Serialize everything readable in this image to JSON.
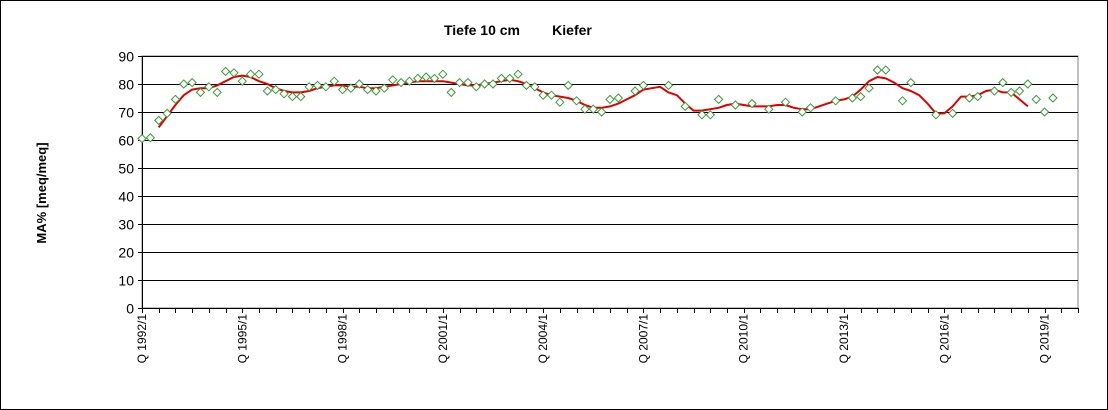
{
  "chart_data": {
    "type": "line",
    "title_left": "Tiefe  10 cm",
    "title_right": "Kiefer",
    "xlabel": "",
    "ylabel": "MA% [meq/meq]",
    "ylim": [
      0,
      90
    ],
    "yticks": [
      0,
      10,
      20,
      30,
      40,
      50,
      60,
      70,
      80,
      90
    ],
    "grid": true,
    "legend": "none",
    "x_unit": "quarter",
    "x_range": [
      "1992/1",
      "2019/4"
    ],
    "xtick_labels": [
      {
        "quarter": "1992/1",
        "label": "Q 1992/1"
      },
      {
        "quarter": "1995/1",
        "label": "Q 1995/1"
      },
      {
        "quarter": "1998/1",
        "label": "Q 1998/1"
      },
      {
        "quarter": "2001/1",
        "label": "Q 2001/1"
      },
      {
        "quarter": "2004/1",
        "label": "Q 2004/1"
      },
      {
        "quarter": "2007/1",
        "label": "Q 2007/1"
      },
      {
        "quarter": "2010/1",
        "label": "Q 2010/1"
      },
      {
        "quarter": "2013/1",
        "label": "Q 2013/1"
      },
      {
        "quarter": "2016/1",
        "label": "Q 2016/1"
      },
      {
        "quarter": "2019/1",
        "label": "Q 2019/1"
      }
    ],
    "colors": {
      "points": "#3a9a3a",
      "smooth": "#e00000",
      "grid": "#000000"
    },
    "series": [
      {
        "kind": "scatter-diamond",
        "points": [
          [
            "1992/1",
            60.5
          ],
          [
            "1992/2",
            60.8
          ],
          [
            "1992/3",
            67
          ],
          [
            "1992/4",
            69.5
          ],
          [
            "1993/1",
            74.5
          ],
          [
            "1993/2",
            80
          ],
          [
            "1993/3",
            80.5
          ],
          [
            "1993/4",
            77
          ],
          [
            "1994/1",
            79
          ],
          [
            "1994/2",
            77
          ],
          [
            "1994/3",
            84.5
          ],
          [
            "1994/4",
            84
          ],
          [
            "1995/1",
            81
          ],
          [
            "1995/2",
            83.5
          ],
          [
            "1995/3",
            83.5
          ],
          [
            "1995/4",
            77.5
          ],
          [
            "1996/1",
            78
          ],
          [
            "1996/2",
            76.5
          ],
          [
            "1996/3",
            75.5
          ],
          [
            "1996/4",
            75.5
          ],
          [
            "1997/1",
            79
          ],
          [
            "1997/2",
            79.5
          ],
          [
            "1997/3",
            79
          ],
          [
            "1997/4",
            81
          ],
          [
            "1998/1",
            78
          ],
          [
            "1998/2",
            78.5
          ],
          [
            "1998/3",
            80
          ],
          [
            "1998/4",
            78
          ],
          [
            "1999/1",
            77.5
          ],
          [
            "1999/2",
            78.5
          ],
          [
            "1999/3",
            81.5
          ],
          [
            "1999/4",
            80.5
          ],
          [
            "2000/1",
            81
          ],
          [
            "2000/2",
            82
          ],
          [
            "2000/3",
            82.5
          ],
          [
            "2000/4",
            82
          ],
          [
            "2001/1",
            83.5
          ],
          [
            "2001/2",
            77
          ],
          [
            "2001/3",
            80.5
          ],
          [
            "2001/4",
            80.5
          ],
          [
            "2002/1",
            79
          ],
          [
            "2002/2",
            80
          ],
          [
            "2002/3",
            80
          ],
          [
            "2002/4",
            82
          ],
          [
            "2003/1",
            82
          ],
          [
            "2003/2",
            83.5
          ],
          [
            "2003/3",
            79.5
          ],
          [
            "2003/4",
            79
          ],
          [
            "2004/1",
            76
          ],
          [
            "2004/2",
            76
          ],
          [
            "2004/3",
            73.5
          ],
          [
            "2004/4",
            79.5
          ],
          [
            "2005/1",
            74
          ],
          [
            "2005/2",
            71
          ],
          [
            "2005/3",
            71
          ],
          [
            "2005/4",
            70
          ],
          [
            "2006/1",
            74.5
          ],
          [
            "2006/2",
            75
          ],
          [
            "2006/4",
            77.5
          ],
          [
            "2007/1",
            79.5
          ],
          [
            "2007/4",
            79.5
          ],
          [
            "2008/2",
            72
          ],
          [
            "2008/4",
            69
          ],
          [
            "2009/1",
            69
          ],
          [
            "2009/2",
            74.5
          ],
          [
            "2009/4",
            72.5
          ],
          [
            "2010/2",
            73
          ],
          [
            "2010/4",
            71
          ],
          [
            "2011/2",
            73.5
          ],
          [
            "2011/4",
            70
          ],
          [
            "2012/1",
            71.5
          ],
          [
            "2012/4",
            74
          ],
          [
            "2013/2",
            75
          ],
          [
            "2013/3",
            75.5
          ],
          [
            "2013/4",
            78.5
          ],
          [
            "2014/1",
            85
          ],
          [
            "2014/2",
            85
          ],
          [
            "2014/4",
            74
          ],
          [
            "2015/1",
            80.5
          ],
          [
            "2015/4",
            69
          ],
          [
            "2016/2",
            69.5
          ],
          [
            "2016/4",
            75
          ],
          [
            "2017/1",
            75.5
          ],
          [
            "2017/3",
            77.5
          ],
          [
            "2017/4",
            80.5
          ],
          [
            "2018/1",
            77
          ],
          [
            "2018/2",
            77.5
          ],
          [
            "2018/3",
            80
          ],
          [
            "2018/4",
            74.5
          ],
          [
            "2019/1",
            70
          ],
          [
            "2019/2",
            75
          ]
        ]
      },
      {
        "kind": "smooth-line",
        "points": [
          [
            "1992/3",
            64.5
          ],
          [
            "1992/4",
            68.5
          ],
          [
            "1993/1",
            72.5
          ],
          [
            "1993/2",
            76
          ],
          [
            "1993/3",
            78
          ],
          [
            "1993/4",
            78.5
          ],
          [
            "1994/1",
            78.5
          ],
          [
            "1994/2",
            79.5
          ],
          [
            "1994/3",
            81
          ],
          [
            "1994/4",
            82.5
          ],
          [
            "1995/1",
            83
          ],
          [
            "1995/2",
            82.5
          ],
          [
            "1995/3",
            81
          ],
          [
            "1995/4",
            80
          ],
          [
            "1996/1",
            78.5
          ],
          [
            "1996/2",
            77.5
          ],
          [
            "1996/3",
            77
          ],
          [
            "1996/4",
            77
          ],
          [
            "1997/1",
            77.5
          ],
          [
            "1997/2",
            78.5
          ],
          [
            "1997/3",
            79
          ],
          [
            "1997/4",
            79.5
          ],
          [
            "1998/1",
            79.5
          ],
          [
            "1998/2",
            79
          ],
          [
            "1998/3",
            79
          ],
          [
            "1998/4",
            78.5
          ],
          [
            "1999/1",
            78.5
          ],
          [
            "1999/2",
            79
          ],
          [
            "1999/3",
            79.5
          ],
          [
            "1999/4",
            80
          ],
          [
            "2000/1",
            80.5
          ],
          [
            "2000/2",
            81
          ],
          [
            "2000/3",
            81
          ],
          [
            "2000/4",
            81
          ],
          [
            "2001/1",
            81
          ],
          [
            "2001/2",
            80.5
          ],
          [
            "2001/3",
            80
          ],
          [
            "2001/4",
            79.5
          ],
          [
            "2002/1",
            79.5
          ],
          [
            "2002/2",
            80
          ],
          [
            "2002/3",
            80.5
          ],
          [
            "2002/4",
            81
          ],
          [
            "2003/1",
            81.5
          ],
          [
            "2003/2",
            81
          ],
          [
            "2003/3",
            80
          ],
          [
            "2003/4",
            78.5
          ],
          [
            "2004/1",
            77
          ],
          [
            "2004/2",
            76
          ],
          [
            "2004/3",
            75.5
          ],
          [
            "2004/4",
            75
          ],
          [
            "2005/1",
            74
          ],
          [
            "2005/2",
            72.5
          ],
          [
            "2005/3",
            71.5
          ],
          [
            "2005/4",
            71.5
          ],
          [
            "2006/1",
            72
          ],
          [
            "2006/2",
            73
          ],
          [
            "2006/3",
            74.5
          ],
          [
            "2006/4",
            76
          ],
          [
            "2007/1",
            78
          ],
          [
            "2007/2",
            78.5
          ],
          [
            "2007/3",
            79
          ],
          [
            "2007/4",
            77
          ],
          [
            "2008/1",
            76
          ],
          [
            "2008/2",
            73
          ],
          [
            "2008/3",
            70.5
          ],
          [
            "2008/4",
            70.5
          ],
          [
            "2009/1",
            71
          ],
          [
            "2009/2",
            71.5
          ],
          [
            "2009/3",
            72.5
          ],
          [
            "2009/4",
            73
          ],
          [
            "2010/1",
            72.5
          ],
          [
            "2010/2",
            72
          ],
          [
            "2010/3",
            72
          ],
          [
            "2010/4",
            72
          ],
          [
            "2011/1",
            72.5
          ],
          [
            "2011/2",
            72.5
          ],
          [
            "2011/3",
            71.5
          ],
          [
            "2011/4",
            71
          ],
          [
            "2012/1",
            71
          ],
          [
            "2012/2",
            72
          ],
          [
            "2012/3",
            73
          ],
          [
            "2012/4",
            74
          ],
          [
            "2013/1",
            74.5
          ],
          [
            "2013/2",
            75.5
          ],
          [
            "2013/3",
            78
          ],
          [
            "2013/4",
            81
          ],
          [
            "2014/1",
            82.5
          ],
          [
            "2014/2",
            82
          ],
          [
            "2014/3",
            80.5
          ],
          [
            "2014/4",
            78.5
          ],
          [
            "2015/1",
            77.5
          ],
          [
            "2015/2",
            76
          ],
          [
            "2015/3",
            73
          ],
          [
            "2015/4",
            69.5
          ],
          [
            "2016/1",
            69.5
          ],
          [
            "2016/2",
            72
          ],
          [
            "2016/3",
            75.5
          ],
          [
            "2016/4",
            75.5
          ],
          [
            "2017/1",
            76
          ],
          [
            "2017/2",
            77.5
          ],
          [
            "2017/3",
            78
          ],
          [
            "2017/4",
            77
          ],
          [
            "2018/1",
            77
          ],
          [
            "2018/2",
            74.5
          ],
          [
            "2018/3",
            72
          ]
        ]
      }
    ]
  }
}
